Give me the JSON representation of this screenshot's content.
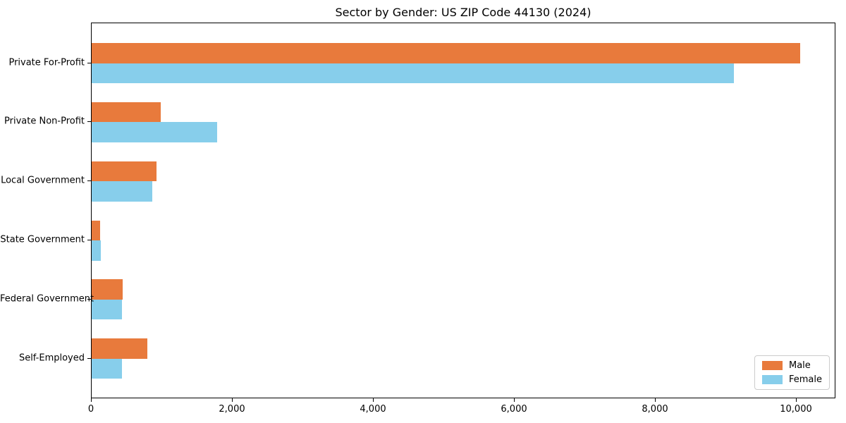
{
  "figure": {
    "background": "#ffffff"
  },
  "chart_data": {
    "type": "bar",
    "orientation": "horizontal",
    "title": "Sector by Gender: US ZIP Code 44130 (2024)",
    "categories": [
      "Private For-Profit",
      "Private Non-Profit",
      "Local Government",
      "State Government",
      "Federal Government",
      "Self-Employed"
    ],
    "series": [
      {
        "name": "Male",
        "color": "#e87a3c",
        "values": [
          10050,
          980,
          920,
          120,
          435,
          790
        ]
      },
      {
        "name": "Female",
        "color": "#87ceeb",
        "values": [
          9110,
          1775,
          860,
          130,
          425,
          430
        ]
      }
    ],
    "xlabel": "",
    "ylabel": "",
    "xlim": [
      0,
      10560
    ],
    "x_ticks": [
      0,
      2000,
      4000,
      6000,
      8000,
      10000
    ],
    "x_tick_labels": [
      "0",
      "2,000",
      "4,000",
      "6,000",
      "8,000",
      "10,000"
    ],
    "grid": false,
    "legend_position": "lower right",
    "legend_border_color": "#cccccc"
  }
}
